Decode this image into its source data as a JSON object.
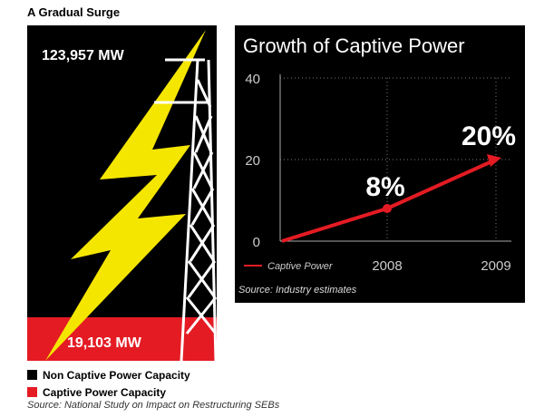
{
  "title": "A Gradual Surge",
  "left": {
    "non_captive_value": "123,957 MW",
    "captive_value": "19,103 MW",
    "legend": [
      {
        "label": "Non Captive Power Capacity",
        "color": "#000000"
      },
      {
        "label": "Captive Power Capacity",
        "color": "#e41b23"
      }
    ],
    "source": "Source: National Study on Impact on Restructuring SEBs"
  },
  "colors": {
    "red": "#e41b23",
    "black": "#000000",
    "yellow": "#f5e600"
  },
  "chart_data": [
    {
      "type": "bar",
      "categories": [
        "Non Captive Power Capacity",
        "Captive Power Capacity"
      ],
      "values": [
        123957,
        19103
      ],
      "unit": "MW",
      "stacked": true
    },
    {
      "type": "line",
      "title": "Growth of Captive Power",
      "x": [
        "",
        "2008",
        "2009"
      ],
      "series": [
        {
          "name": "Captive Power",
          "values": [
            0,
            8,
            20
          ],
          "labels": [
            "",
            "8%",
            "20%"
          ]
        }
      ],
      "ylim": [
        0,
        40
      ],
      "yticks": [
        "0",
        "20",
        "40"
      ],
      "grid": true,
      "legend_placement": "bottom-left",
      "source": "Source: Industry estimates"
    }
  ]
}
